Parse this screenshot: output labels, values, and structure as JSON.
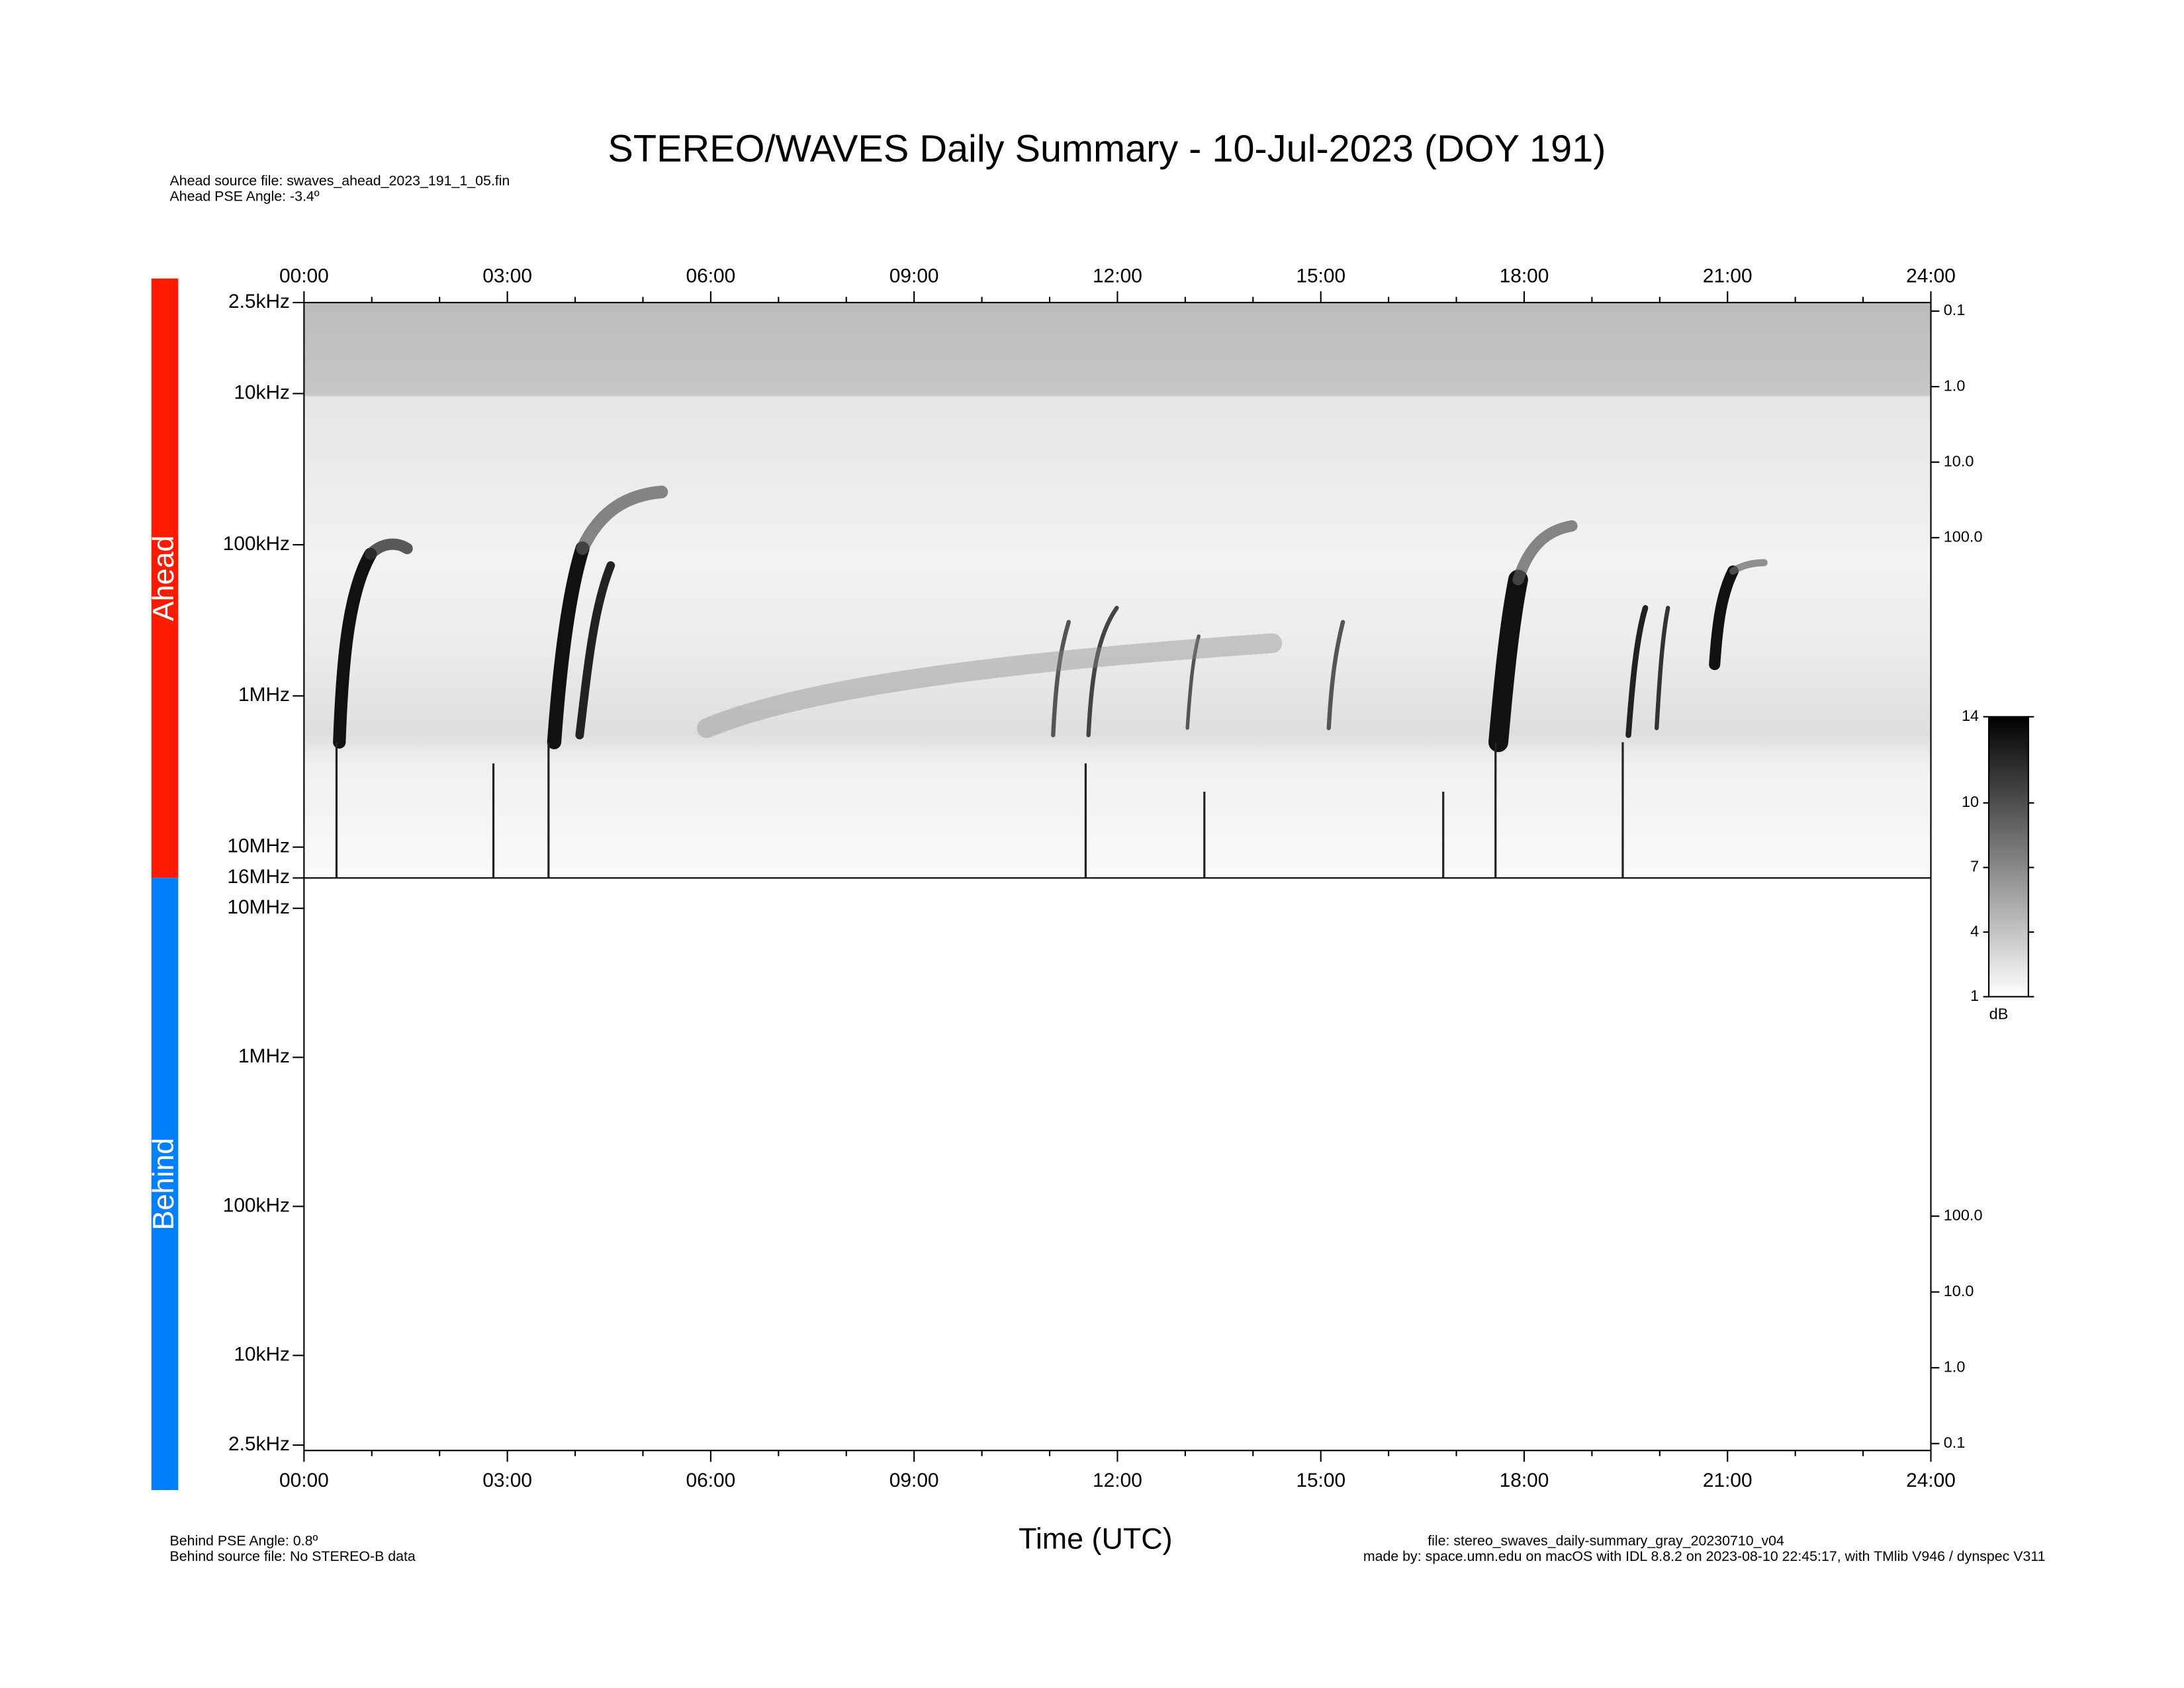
{
  "chart_data": {
    "type": "spectrogram",
    "title": "STEREO/WAVES Daily Summary - 10-Jul-2023 (DOY 191)",
    "xlabel": "Time (UTC)",
    "xlim": [
      0,
      24
    ],
    "xticks": [
      {
        "value": 0,
        "label": "00:00"
      },
      {
        "value": 3,
        "label": "03:00"
      },
      {
        "value": 6,
        "label": "06:00"
      },
      {
        "value": 9,
        "label": "09:00"
      },
      {
        "value": 12,
        "label": "12:00"
      },
      {
        "value": 15,
        "label": "15:00"
      },
      {
        "value": 18,
        "label": "18:00"
      },
      {
        "value": 21,
        "label": "21:00"
      },
      {
        "value": 24,
        "label": "24:00"
      }
    ],
    "panels": [
      {
        "name": "Ahead",
        "color": "#ff1a00",
        "ylog": true,
        "ylim": [
          16000,
          2.5
        ],
        "yticks": [
          {
            "value": 2.5,
            "label": "2.5kHz"
          },
          {
            "value": 10,
            "label": "10kHz"
          },
          {
            "value": 100,
            "label": "100kHz"
          },
          {
            "value": 1000,
            "label": "1MHz"
          },
          {
            "value": 10000,
            "label": "10MHz"
          },
          {
            "value": 16000,
            "label": "16MHz"
          }
        ],
        "y2lim": [
          3200000,
          0.077
        ],
        "y2ticks": [
          0.1,
          {
            "value": 1,
            "label": "1.0"
          },
          {
            "value": 10,
            "label": "10.0"
          },
          {
            "value": 100,
            "label": "100.0"
          }
        ]
      },
      {
        "name": "Behind",
        "color": "#0080ff",
        "ylog": true,
        "ylim": [
          2.3,
          16000
        ],
        "yticks": [
          {
            "value": 10000,
            "label": "10MHz"
          },
          {
            "value": 1000,
            "label": "1MHz"
          },
          {
            "value": 100,
            "label": "100kHz"
          },
          {
            "value": 10,
            "label": "10kHz"
          },
          {
            "value": 2.5,
            "label": "2.5kHz"
          }
        ],
        "y2lim": [
          0.081,
          2900000
        ],
        "y2ticks": [
          {
            "value": 100,
            "label": "100.0"
          },
          {
            "value": 10,
            "label": "10.0"
          },
          {
            "value": 1,
            "label": "1.0"
          },
          0.1
        ]
      }
    ],
    "colorbar": {
      "label": "dB",
      "lim": [
        1,
        14
      ],
      "ticks": [
        1,
        4,
        7,
        10,
        14
      ]
    },
    "notes": {
      "ahead_source": "Ahead source file: swaves_ahead_2023_191_1_05.fin",
      "ahead_pse": "Ahead PSE Angle:   -3.4º",
      "behind_pse": "Behind PSE Angle:    0.8º",
      "behind_source": "Behind source file: No STEREO-B data",
      "file": "file: stereo_swaves_daily-summary_gray_20230710_v04",
      "made_by": "made by: space.umn.edu on macOS with IDL 8.8.2 on 2023-08-10 22:45:17, with TMlib V946 / dynspec V311"
    }
  }
}
